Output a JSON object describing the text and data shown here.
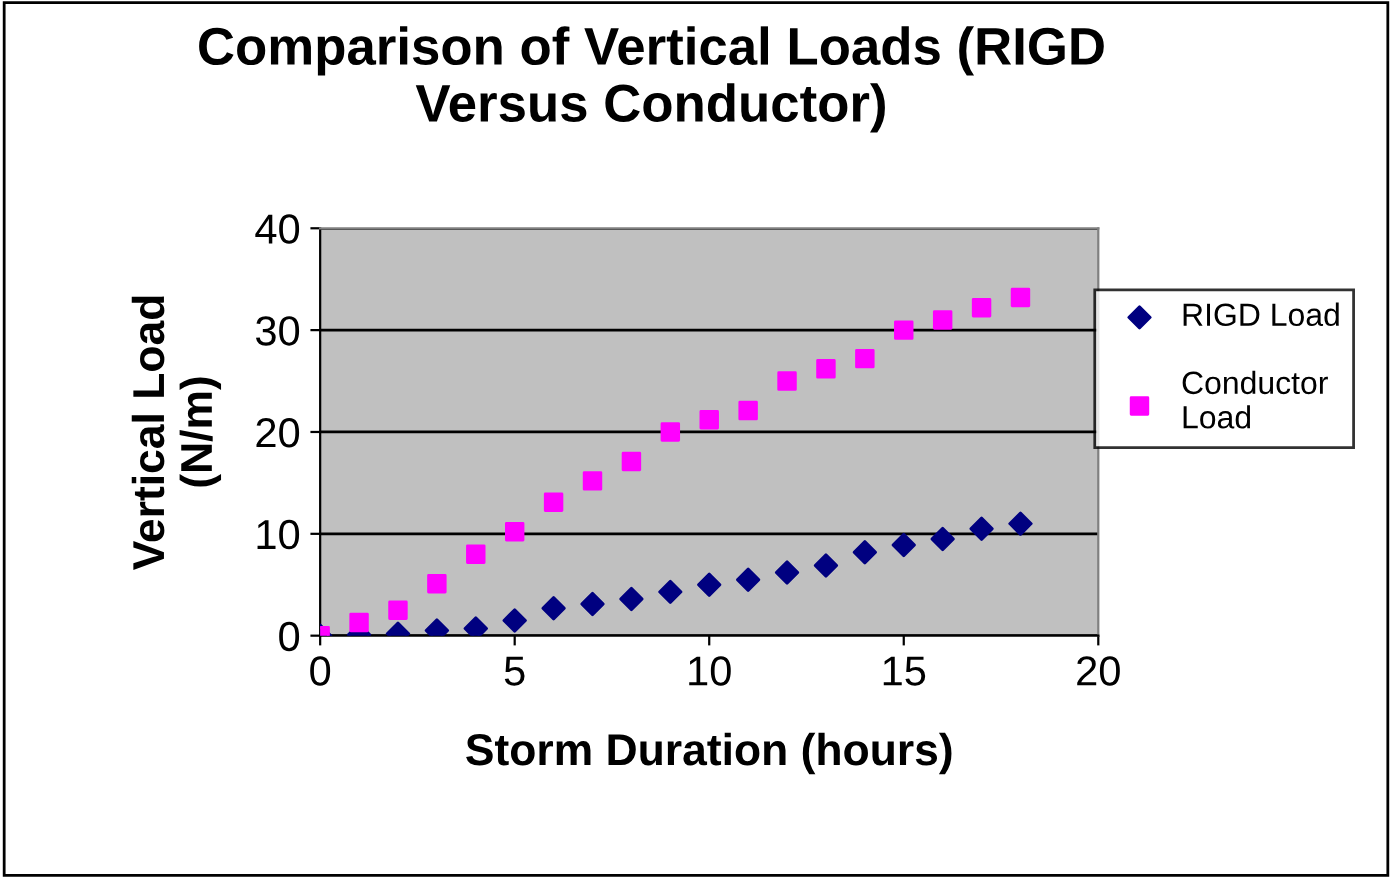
{
  "chart_data": {
    "type": "scatter",
    "title": "Comparison of Vertical Loads (RIGD\nVersus Conductor)",
    "xlabel": "Storm Duration (hours)",
    "ylabel": "Vertical Load\n(N/m)",
    "x": [
      0,
      1,
      2,
      3,
      4,
      5,
      6,
      7,
      8,
      9,
      10,
      11,
      12,
      13,
      14,
      15,
      16,
      17,
      18
    ],
    "series": [
      {
        "name": "RIGD Load",
        "color": "#000080",
        "marker": "diamond",
        "values": [
          0,
          0.1,
          0.2,
          0.5,
          0.7,
          1.5,
          2.7,
          3.1,
          3.6,
          4.3,
          5.0,
          5.5,
          6.2,
          6.9,
          8.2,
          8.9,
          9.5,
          10.5,
          11.0
        ]
      },
      {
        "name": "Conductor\nLoad",
        "color": "#ff00ff",
        "marker": "square",
        "values": [
          0,
          1.3,
          2.5,
          5.1,
          8.0,
          10.2,
          13.1,
          15.2,
          17.1,
          20.0,
          21.2,
          22.1,
          25.0,
          26.2,
          27.2,
          30.0,
          31.0,
          32.2,
          33.2
        ]
      }
    ],
    "xlim": [
      0,
      20
    ],
    "xticks": [
      0,
      5,
      10,
      15,
      20
    ],
    "ylim": [
      0,
      40
    ],
    "yticks": [
      0,
      10,
      20,
      30,
      40
    ],
    "grid": "y",
    "legend": "right"
  }
}
